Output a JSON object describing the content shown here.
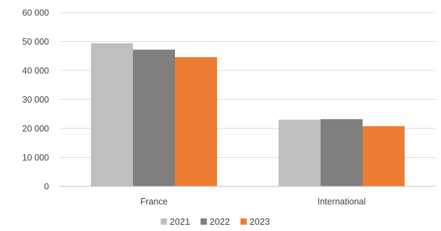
{
  "chart_data": {
    "type": "bar",
    "title": "",
    "xlabel": "",
    "ylabel": "",
    "categories": [
      "France",
      "International"
    ],
    "series": [
      {
        "name": "2021",
        "values": [
          49400,
          23000
        ],
        "color": "#bfbfbf"
      },
      {
        "name": "2022",
        "values": [
          47200,
          23200
        ],
        "color": "#7f7f7f"
      },
      {
        "name": "2023",
        "values": [
          44600,
          20800
        ],
        "color": "#ed7d31"
      }
    ],
    "ylim": [
      0,
      60000
    ],
    "yticks": [
      0,
      10000,
      20000,
      30000,
      40000,
      50000,
      60000
    ],
    "ytick_labels": [
      "0",
      "10 000",
      "20 000",
      "30 000",
      "40 000",
      "50 000",
      "60 000"
    ],
    "grid": true,
    "legend_position": "bottom"
  }
}
